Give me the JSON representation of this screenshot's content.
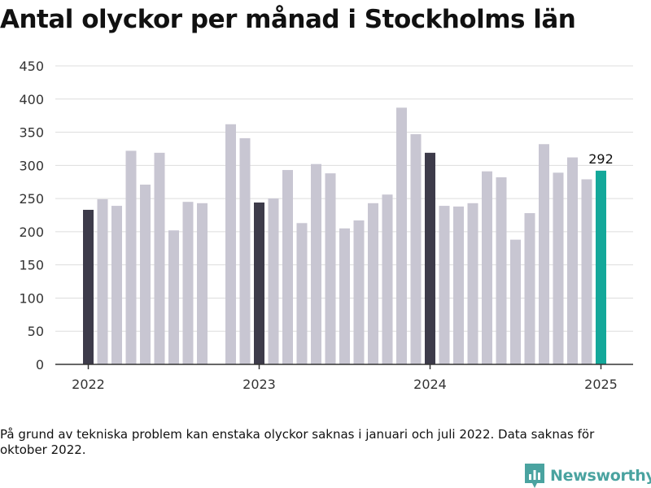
{
  "chart_data": {
    "type": "bar",
    "title": "Antal olyckor per månad i Stockholms län",
    "xlabel": "",
    "ylabel": "",
    "ylim": [
      0,
      450
    ],
    "y_ticks": [
      0,
      50,
      100,
      150,
      200,
      250,
      300,
      350,
      400,
      450
    ],
    "x_tick_labels": [
      {
        "label": "2022",
        "month_index": 0
      },
      {
        "label": "2023",
        "month_index": 12
      },
      {
        "label": "2024",
        "month_index": 24
      },
      {
        "label": "2025",
        "month_index": 36
      }
    ],
    "grid": true,
    "legend": "none",
    "months": [
      "2022-01",
      "2022-02",
      "2022-03",
      "2022-04",
      "2022-05",
      "2022-06",
      "2022-07",
      "2022-08",
      "2022-09",
      "2022-10",
      "2022-11",
      "2022-12",
      "2023-01",
      "2023-02",
      "2023-03",
      "2023-04",
      "2023-05",
      "2023-06",
      "2023-07",
      "2023-08",
      "2023-09",
      "2023-10",
      "2023-11",
      "2023-12",
      "2024-01",
      "2024-02",
      "2024-03",
      "2024-04",
      "2024-05",
      "2024-06",
      "2024-07",
      "2024-08",
      "2024-09",
      "2024-10",
      "2024-11",
      "2024-12",
      "2025-01"
    ],
    "values": [
      233,
      249,
      239,
      322,
      271,
      319,
      202,
      245,
      243,
      null,
      362,
      341,
      244,
      250,
      293,
      213,
      302,
      288,
      205,
      217,
      243,
      256,
      387,
      347,
      319,
      239,
      238,
      243,
      291,
      282,
      188,
      228,
      332,
      289,
      312,
      279,
      292
    ],
    "highlight_months": [
      "2022-01",
      "2023-01",
      "2024-01"
    ],
    "latest_month": "2025-01",
    "latest_value_label": "292",
    "colors": {
      "default_bar": "#c8c6d2",
      "january_bar": "#3d3b4a",
      "latest_bar": "#13a89a",
      "grid": "#dddddd",
      "axis": "#333333"
    }
  },
  "footnote": "På grund av tekniska problem kan enstaka olyckor saknas i januari och juli 2022. Data saknas för oktober 2022.",
  "brand": {
    "name": "Newsworthy",
    "icon": "newsworthy-chart-logo-icon",
    "color": "#4aa3a0"
  }
}
